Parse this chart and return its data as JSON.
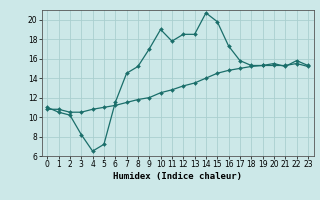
{
  "title": "",
  "xlabel": "Humidex (Indice chaleur)",
  "bg_color": "#cce8e8",
  "line_color": "#1a6e6a",
  "grid_color": "#aacfcf",
  "xlim": [
    -0.5,
    23.5
  ],
  "ylim": [
    6,
    21
  ],
  "xticks": [
    0,
    1,
    2,
    3,
    4,
    5,
    6,
    7,
    8,
    9,
    10,
    11,
    12,
    13,
    14,
    15,
    16,
    17,
    18,
    19,
    20,
    21,
    22,
    23
  ],
  "yticks": [
    6,
    8,
    10,
    12,
    14,
    16,
    18,
    20
  ],
  "line1_x": [
    0,
    1,
    2,
    3,
    4,
    5,
    6,
    7,
    8,
    9,
    10,
    11,
    12,
    13,
    14,
    15,
    16,
    17,
    18,
    19,
    20,
    21,
    22,
    23
  ],
  "line1_y": [
    11,
    10.5,
    10.2,
    8.2,
    6.5,
    7.2,
    11.5,
    14.5,
    15.2,
    17,
    19,
    17.8,
    18.5,
    18.5,
    20.7,
    19.8,
    17.3,
    15.8,
    15.3,
    15.3,
    15.5,
    15.2,
    15.8,
    15.3
  ],
  "line2_x": [
    0,
    1,
    2,
    3,
    4,
    5,
    6,
    7,
    8,
    9,
    10,
    11,
    12,
    13,
    14,
    15,
    16,
    17,
    18,
    19,
    20,
    21,
    22,
    23
  ],
  "line2_y": [
    10.8,
    10.8,
    10.5,
    10.5,
    10.8,
    11.0,
    11.2,
    11.5,
    11.8,
    12.0,
    12.5,
    12.8,
    13.2,
    13.5,
    14.0,
    14.5,
    14.8,
    15.0,
    15.2,
    15.3,
    15.3,
    15.3,
    15.5,
    15.2
  ],
  "tick_fontsize": 5.5,
  "xlabel_fontsize": 6.5,
  "marker_size": 2.0
}
